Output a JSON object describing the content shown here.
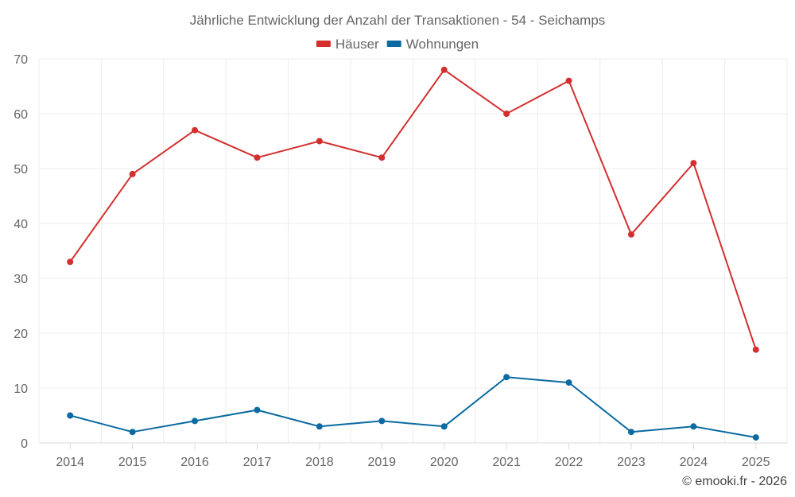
{
  "chart_data": {
    "type": "line",
    "title": "Jährliche Entwicklung der Anzahl der Transaktionen - 54 - Seichamps",
    "categories": [
      "2014",
      "2015",
      "2016",
      "2017",
      "2018",
      "2019",
      "2020",
      "2021",
      "2022",
      "2023",
      "2024",
      "2025"
    ],
    "series": [
      {
        "name": "Häuser",
        "color": "#d32f2f",
        "values": [
          33,
          49,
          57,
          52,
          55,
          52,
          68,
          60,
          66,
          38,
          51,
          17
        ]
      },
      {
        "name": "Wohnungen",
        "color": "#0a6aa1",
        "values": [
          5,
          2,
          4,
          6,
          3,
          4,
          3,
          12,
          11,
          2,
          3,
          1
        ]
      }
    ],
    "ylim": [
      0,
      70
    ],
    "yticks": [
      0,
      10,
      20,
      30,
      40,
      50,
      60,
      70
    ],
    "grid": true,
    "legend_position": "top-center",
    "xlabel": "",
    "ylabel": ""
  },
  "credit": "© emooki.fr - 2026"
}
